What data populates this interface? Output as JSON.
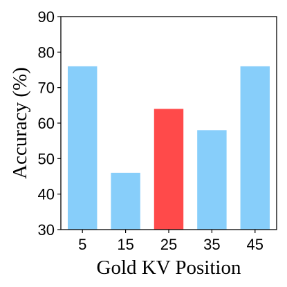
{
  "chart_data": {
    "type": "bar",
    "categories": [
      "5",
      "15",
      "25",
      "35",
      "45"
    ],
    "values": [
      76,
      46,
      64,
      58,
      76
    ],
    "highlight_index": 2,
    "colors": {
      "default": "#87CEFA",
      "highlight": "#FF4A4A"
    },
    "title": "",
    "xlabel": "Gold KV Position",
    "ylabel": "Accuracy (%)",
    "ylim": [
      30,
      90
    ],
    "yticks": [
      30,
      40,
      50,
      60,
      70,
      80,
      90
    ],
    "grid": false,
    "legend": "none"
  }
}
